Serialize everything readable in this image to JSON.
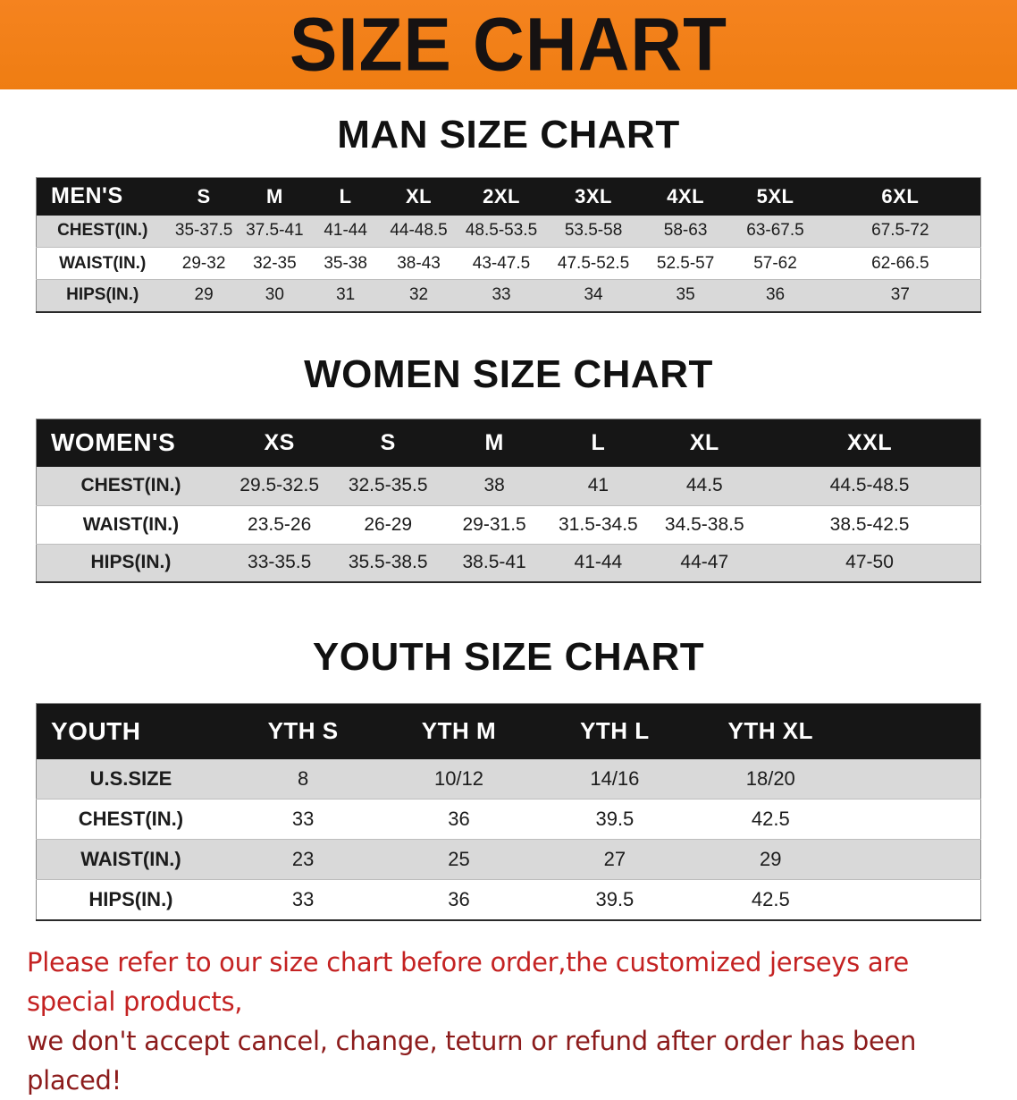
{
  "banner": {
    "title": "SIZE CHART"
  },
  "colors": {
    "banner_bg": "#f5831f",
    "table_header_bg": "#161616",
    "row_stripe": "#d9d9d9",
    "heading_text": "#111111",
    "disclaimer_line1": "#c42222",
    "disclaimer_line2": "#8c1b1b"
  },
  "sections": [
    {
      "heading": "MAN SIZE CHART",
      "table": {
        "header": [
          "MEN'S",
          "S",
          "M",
          "L",
          "XL",
          "2XL",
          "3XL",
          "4XL",
          "5XL",
          "6XL"
        ],
        "rows": [
          [
            "CHEST(IN.)",
            "35-37.5",
            "37.5-41",
            "41-44",
            "44-48.5",
            "48.5-53.5",
            "53.5-58",
            "58-63",
            "63-67.5",
            "67.5-72"
          ],
          [
            "WAIST(IN.)",
            "29-32",
            "32-35",
            "35-38",
            "38-43",
            "43-47.5",
            "47.5-52.5",
            "52.5-57",
            "57-62",
            "62-66.5"
          ],
          [
            "HIPS(IN.)",
            "29",
            "30",
            "31",
            "32",
            "33",
            "34",
            "35",
            "36",
            "37"
          ]
        ]
      }
    },
    {
      "heading": "WOMEN SIZE CHART",
      "table": {
        "header": [
          "WOMEN'S",
          "XS",
          "S",
          "M",
          "L",
          "XL",
          "XXL"
        ],
        "rows": [
          [
            "CHEST(IN.)",
            "29.5-32.5",
            "32.5-35.5",
            "38",
            "41",
            "44.5",
            "44.5-48.5"
          ],
          [
            "WAIST(IN.)",
            "23.5-26",
            "26-29",
            "29-31.5",
            "31.5-34.5",
            "34.5-38.5",
            "38.5-42.5"
          ],
          [
            "HIPS(IN.)",
            "33-35.5",
            "35.5-38.5",
            "38.5-41",
            "41-44",
            "44-47",
            "47-50"
          ]
        ]
      }
    },
    {
      "heading": "YOUTH SIZE CHART",
      "table": {
        "header": [
          "YOUTH",
          "YTH S",
          "YTH M",
          "YTH L",
          "YTH XL"
        ],
        "rows": [
          [
            "U.S.SIZE",
            "8",
            "10/12",
            "14/16",
            "18/20"
          ],
          [
            "CHEST(IN.)",
            "33",
            "36",
            "39.5",
            "42.5"
          ],
          [
            "WAIST(IN.)",
            "23",
            "25",
            "27",
            "29"
          ],
          [
            "HIPS(IN.)",
            "33",
            "36",
            "39.5",
            "42.5"
          ]
        ]
      }
    }
  ],
  "disclaimer": {
    "line1": "Please refer to our size chart before order,the customized jerseys are special products,",
    "line2": "we don't accept cancel, change, teturn or refund after order has been placed!"
  }
}
